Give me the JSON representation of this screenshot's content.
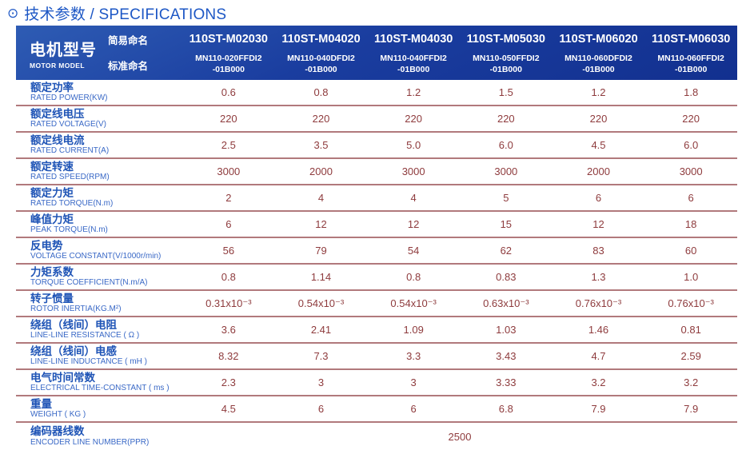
{
  "title": {
    "icon": "⊙",
    "text": "技术参数 / SPECIFICATIONS"
  },
  "colors": {
    "header_bg": "#1a3d9f",
    "title_blue": "#1d57c5",
    "label_blue": "#1f54b6",
    "label_blue_light": "#3968c6",
    "value_red": "#8e3b3d",
    "divider_rose": "#b1797c"
  },
  "header": {
    "model_label_zh": "电机型号",
    "model_label_en": "MOTOR MODEL",
    "simple_name_label": "简易命名",
    "standard_name_label": "标准命名",
    "columns": [
      {
        "simple": "110ST-M02030",
        "standard": [
          "MN110-020FFDI2",
          "-01B000"
        ]
      },
      {
        "simple": "110ST-M04020",
        "standard": [
          "MN110-040DFDI2",
          "-01B000"
        ]
      },
      {
        "simple": "110ST-M04030",
        "standard": [
          "MN110-040FFDI2",
          "-01B000"
        ]
      },
      {
        "simple": "110ST-M05030",
        "standard": [
          "MN110-050FFDI2",
          "-01B000"
        ]
      },
      {
        "simple": "110ST-M06020",
        "standard": [
          "MN110-060DFDI2",
          "-01B000"
        ]
      },
      {
        "simple": "110ST-M06030",
        "standard": [
          "MN110-060FFDI2",
          "-01B000"
        ]
      }
    ]
  },
  "table": {
    "rows": [
      {
        "zh": "额定功率",
        "en": "RATED POWER(KW)",
        "values": [
          "0.6",
          "0.8",
          "1.2",
          "1.5",
          "1.2",
          "1.8"
        ]
      },
      {
        "zh": "额定线电压",
        "en": "RATED VOLTAGE(V)",
        "values": [
          "220",
          "220",
          "220",
          "220",
          "220",
          "220"
        ]
      },
      {
        "zh": "额定线电流",
        "en": "RATED CURRENT(A)",
        "values": [
          "2.5",
          "3.5",
          "5.0",
          "6.0",
          "4.5",
          "6.0"
        ]
      },
      {
        "zh": "额定转速",
        "en": "RATED SPEED(RPM)",
        "values": [
          "3000",
          "2000",
          "3000",
          "3000",
          "2000",
          "3000"
        ]
      },
      {
        "zh": "额定力矩",
        "en": "RATED TORQUE(N.m)",
        "values": [
          "2",
          "4",
          "4",
          "5",
          "6",
          "6"
        ]
      },
      {
        "zh": "峰值力矩",
        "en": "PEAK TORQUE(N.m)",
        "values": [
          "6",
          "12",
          "12",
          "15",
          "12",
          "18"
        ]
      },
      {
        "zh": "反电势",
        "en": "VOLTAGE CONSTANT(V/1000r/min)",
        "values": [
          "56",
          "79",
          "54",
          "62",
          "83",
          "60"
        ]
      },
      {
        "zh": "力矩系数",
        "en": "TORQUE COEFFICIENT(N.m/A)",
        "values": [
          "0.8",
          "1.14",
          "0.8",
          "0.83",
          "1.3",
          "1.0"
        ]
      },
      {
        "zh": "转子惯量",
        "en": "ROTOR INERTIA(KG.M²)",
        "values": [
          "0.31x10⁻³",
          "0.54x10⁻³",
          "0.54x10⁻³",
          "0.63x10⁻³",
          "0.76x10⁻³",
          "0.76x10⁻³"
        ]
      },
      {
        "zh": "绕组（线间）电阻",
        "en": "LINE-LINE RESISTANCE ( Ω )",
        "values": [
          "3.6",
          "2.41",
          "1.09",
          "1.03",
          "1.46",
          "0.81"
        ]
      },
      {
        "zh": "绕组（线间）电感",
        "en": "LINE-LINE INDUCTANCE ( mH )",
        "values": [
          "8.32",
          "7.3",
          "3.3",
          "3.43",
          "4.7",
          "2.59"
        ]
      },
      {
        "zh": "电气时间常数",
        "en": "ELECTRICAL TIME-CONSTANT ( ms )",
        "values": [
          "2.3",
          "3",
          "3",
          "3.33",
          "3.2",
          "3.2"
        ]
      },
      {
        "zh": "重量",
        "en": "WEIGHT ( KG )",
        "values": [
          "4.5",
          "6",
          "6",
          "6.8",
          "7.9",
          "7.9"
        ]
      },
      {
        "zh": "编码器线数",
        "en": "ENCODER LINE NUMBER(PPR)",
        "span_value": "2500"
      }
    ]
  }
}
